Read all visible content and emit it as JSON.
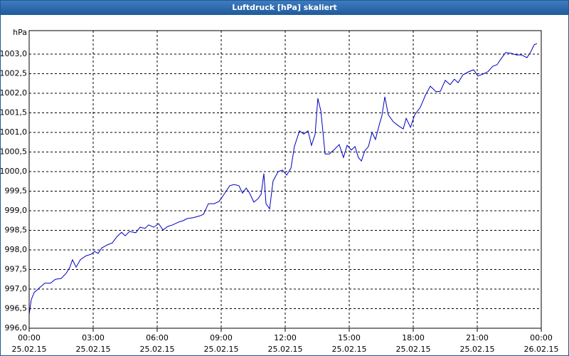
{
  "chart_data": {
    "type": "line",
    "title": "Luftdruck [hPa] skaliert",
    "y_label": "hPa",
    "x": [
      0.0,
      0.1,
      0.23,
      0.5,
      0.73,
      1.0,
      1.23,
      1.5,
      1.73,
      1.9,
      2.03,
      2.2,
      2.4,
      2.67,
      2.9,
      3.07,
      3.23,
      3.4,
      3.67,
      3.9,
      4.1,
      4.33,
      4.5,
      4.7,
      5.0,
      5.2,
      5.43,
      5.6,
      5.83,
      6.07,
      6.27,
      6.5,
      6.73,
      7.0,
      7.23,
      7.4,
      7.67,
      8.0,
      8.17,
      8.4,
      8.67,
      8.9,
      9.17,
      9.4,
      9.6,
      9.83,
      10.0,
      10.17,
      10.33,
      10.53,
      10.73,
      10.87,
      11.0,
      11.1,
      11.27,
      11.43,
      11.67,
      11.87,
      12.07,
      12.27,
      12.43,
      12.67,
      12.87,
      13.07,
      13.23,
      13.4,
      13.53,
      13.67,
      13.87,
      14.07,
      14.33,
      14.53,
      14.73,
      14.9,
      15.1,
      15.27,
      15.43,
      15.57,
      15.73,
      15.9,
      16.07,
      16.23,
      16.43,
      16.53,
      16.67,
      16.83,
      17.07,
      17.33,
      17.53,
      17.67,
      17.87,
      18.07,
      18.33,
      18.57,
      18.8,
      19.07,
      19.27,
      19.5,
      19.73,
      19.93,
      20.1,
      20.33,
      20.6,
      20.83,
      21.03,
      21.27,
      21.5,
      21.73,
      21.93,
      22.1,
      22.33,
      22.6,
      22.83,
      23.07,
      23.33,
      23.5,
      23.67,
      23.8
    ],
    "series": [
      {
        "name": "Luftdruck",
        "color": "#0000c0",
        "values": [
          996.36,
          996.73,
          996.91,
          997.04,
          997.15,
          997.15,
          997.25,
          997.27,
          997.4,
          997.55,
          997.75,
          997.56,
          997.75,
          997.85,
          997.89,
          997.96,
          997.91,
          998.05,
          998.13,
          998.18,
          998.33,
          998.45,
          998.36,
          998.47,
          998.44,
          998.58,
          998.55,
          998.64,
          998.58,
          998.67,
          998.51,
          998.6,
          998.64,
          998.71,
          998.75,
          998.8,
          998.82,
          998.87,
          998.91,
          999.18,
          999.18,
          999.24,
          999.45,
          999.64,
          999.67,
          999.64,
          999.45,
          999.58,
          999.45,
          999.22,
          999.31,
          999.42,
          999.95,
          999.18,
          999.05,
          999.76,
          1000.0,
          1000.04,
          999.91,
          1000.09,
          1000.64,
          1001.04,
          1000.96,
          1001.04,
          1000.67,
          1000.95,
          1001.87,
          1001.55,
          1000.45,
          1000.45,
          1000.58,
          1000.69,
          1000.36,
          1000.67,
          1000.55,
          1000.64,
          1000.36,
          1000.27,
          1000.53,
          1000.64,
          1001.0,
          1000.82,
          1001.24,
          1001.42,
          1001.91,
          1001.45,
          1001.27,
          1001.16,
          1001.09,
          1001.36,
          1001.13,
          1001.45,
          1001.64,
          1001.95,
          1002.18,
          1002.04,
          1002.05,
          1002.33,
          1002.22,
          1002.36,
          1002.27,
          1002.47,
          1002.55,
          1002.6,
          1002.44,
          1002.49,
          1002.55,
          1002.69,
          1002.73,
          1002.87,
          1003.04,
          1003.02,
          1002.98,
          1002.98,
          1002.91,
          1003.05,
          1003.24,
          1003.27
        ]
      }
    ],
    "xlim": [
      0,
      24
    ],
    "xticks": [
      {
        "value": 0,
        "label": "00:00"
      },
      {
        "value": 3,
        "label": "03:00"
      },
      {
        "value": 6,
        "label": "06:00"
      },
      {
        "value": 9,
        "label": "09:00"
      },
      {
        "value": 12,
        "label": "12:00"
      },
      {
        "value": 15,
        "label": "15:00"
      },
      {
        "value": 18,
        "label": "18:00"
      },
      {
        "value": 21,
        "label": "21:00"
      },
      {
        "value": 24,
        "label": "00:00"
      }
    ],
    "xtick_dates": [
      "25.02.15",
      "25.02.15",
      "25.02.15",
      "25.02.15",
      "25.02.15",
      "25.02.15",
      "25.02.15",
      "25.02.15",
      "26.02.15"
    ],
    "ylim": [
      996,
      1003.6
    ],
    "yticks": [
      {
        "value": 996,
        "label": "996,0"
      },
      {
        "value": 996.5,
        "label": "996,5"
      },
      {
        "value": 997,
        "label": "997,0"
      },
      {
        "value": 997.5,
        "label": "997,5"
      },
      {
        "value": 998,
        "label": "998,0"
      },
      {
        "value": 998.5,
        "label": "998,5"
      },
      {
        "value": 999,
        "label": "999,0"
      },
      {
        "value": 999.5,
        "label": "999,5"
      },
      {
        "value": 1000,
        "label": "1000,0"
      },
      {
        "value": 1000.5,
        "label": "1000,5"
      },
      {
        "value": 1001,
        "label": "1001,0"
      },
      {
        "value": 1001.5,
        "label": "1001,5"
      },
      {
        "value": 1002,
        "label": "1002,0"
      },
      {
        "value": 1002.5,
        "label": "1002,5"
      },
      {
        "value": 1003,
        "label": "1003,0"
      }
    ],
    "grid": true
  }
}
